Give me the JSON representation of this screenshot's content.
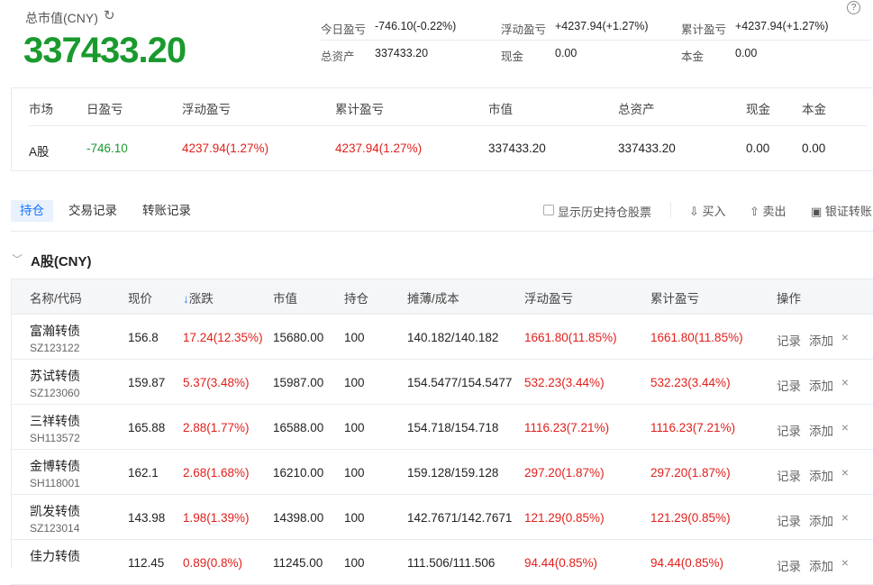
{
  "summary": {
    "title": "总市值(CNY)",
    "total": "337433.20",
    "stats": [
      {
        "label": "今日盈亏",
        "value": "-746.10(-0.22%)",
        "tone": "green"
      },
      {
        "label": "浮动盈亏",
        "value": "+4237.94(+1.27%)",
        "tone": "red"
      },
      {
        "label": "累计盈亏",
        "value": "+4237.94(+1.27%)",
        "tone": "red"
      },
      {
        "label": "总资产",
        "value": "337433.20",
        "tone": ""
      },
      {
        "label": "现金",
        "value": "0.00",
        "tone": ""
      },
      {
        "label": "本金",
        "value": "0.00",
        "tone": ""
      }
    ]
  },
  "market_table": {
    "headers": [
      "市场",
      "日盈亏",
      "浮动盈亏",
      "累计盈亏",
      "市值",
      "总资产",
      "现金",
      "本金"
    ],
    "row": [
      "A股",
      "-746.10",
      "4237.94(1.27%)",
      "4237.94(1.27%)",
      "337433.20",
      "337433.20",
      "0.00",
      "0.00"
    ]
  },
  "tabs": [
    "持仓",
    "交易记录",
    "转账记录"
  ],
  "toolbar": {
    "show_history": "显示历史持仓股票",
    "buy": "买入",
    "sell": "卖出",
    "transfer": "银证转账"
  },
  "section": {
    "title": "A股(CNY)"
  },
  "holdings": {
    "headers": [
      "名称/代码",
      "现价",
      "涨跌",
      "市值",
      "持仓",
      "摊薄/成本",
      "浮动盈亏",
      "累计盈亏",
      "操作"
    ],
    "actions": {
      "record": "记录",
      "add": "添加",
      "remove": "×"
    },
    "rows": [
      {
        "name": "富瀚转债",
        "code": "SZ123122",
        "price": "156.8",
        "change": "17.24(12.35%)",
        "mv": "15680.00",
        "qty": "100",
        "cost": "140.182/140.182",
        "float": "1661.80(11.85%)",
        "total": "1661.80(11.85%)"
      },
      {
        "name": "苏试转债",
        "code": "SZ123060",
        "price": "159.87",
        "change": "5.37(3.48%)",
        "mv": "15987.00",
        "qty": "100",
        "cost": "154.5477/154.5477",
        "float": "532.23(3.44%)",
        "total": "532.23(3.44%)"
      },
      {
        "name": "三祥转债",
        "code": "SH113572",
        "price": "165.88",
        "change": "2.88(1.77%)",
        "mv": "16588.00",
        "qty": "100",
        "cost": "154.718/154.718",
        "float": "1116.23(7.21%)",
        "total": "1116.23(7.21%)"
      },
      {
        "name": "金博转债",
        "code": "SH118001",
        "price": "162.1",
        "change": "2.68(1.68%)",
        "mv": "16210.00",
        "qty": "100",
        "cost": "159.128/159.128",
        "float": "297.20(1.87%)",
        "total": "297.20(1.87%)"
      },
      {
        "name": "凯发转债",
        "code": "SZ123014",
        "price": "143.98",
        "change": "1.98(1.39%)",
        "mv": "14398.00",
        "qty": "100",
        "cost": "142.7671/142.7671",
        "float": "121.29(0.85%)",
        "total": "121.29(0.85%)"
      },
      {
        "name": "佳力转债",
        "code": "",
        "price": "112.45",
        "change": "0.89(0.8%)",
        "mv": "11245.00",
        "qty": "100",
        "cost": "111.506/111.506",
        "float": "94.44(0.85%)",
        "total": "94.44(0.85%)"
      }
    ]
  },
  "colors": {
    "up": "#e0201c",
    "down": "#1a9a2e",
    "accent": "#1677ff"
  }
}
